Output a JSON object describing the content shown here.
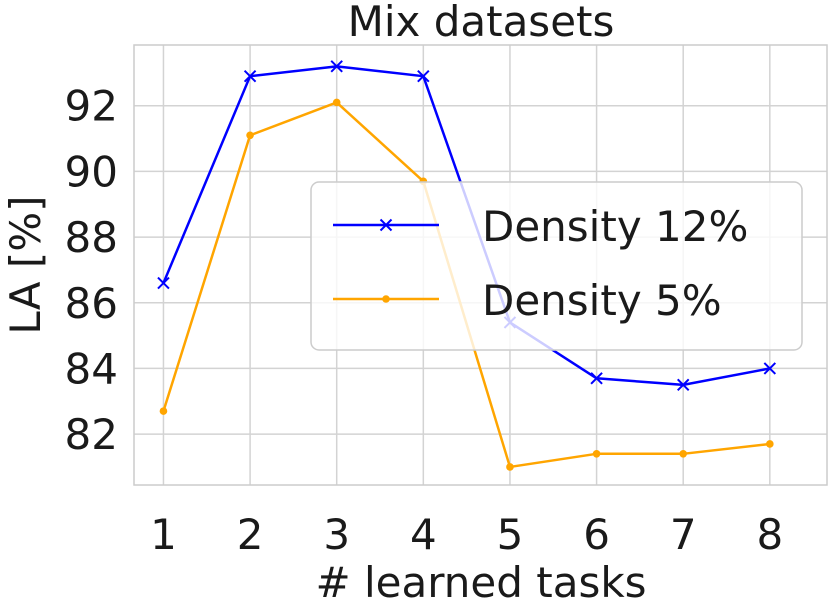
{
  "chart_data": {
    "type": "line",
    "title": "Mix datasets",
    "xlabel": "# learned tasks",
    "ylabel": "LA [%]",
    "x": [
      1,
      2,
      3,
      4,
      5,
      6,
      7,
      8
    ],
    "xticks": [
      "1",
      "2",
      "3",
      "4",
      "5",
      "6",
      "7",
      "8"
    ],
    "yticks": [
      "82",
      "84",
      "86",
      "88",
      "90",
      "92"
    ],
    "xlim": [
      0.66,
      8.66
    ],
    "ylim": [
      80.45,
      93.85
    ],
    "grid": true,
    "legend_position": "center-right",
    "series": [
      {
        "name": "Density 12%",
        "color": "#0000ff",
        "marker": "x",
        "values": [
          86.6,
          92.9,
          93.2,
          92.9,
          85.4,
          83.7,
          83.5,
          84.0
        ]
      },
      {
        "name": "Density 5%",
        "color": "#ffa500",
        "marker": "o",
        "values": [
          82.7,
          91.1,
          92.1,
          89.7,
          81.0,
          81.4,
          81.4,
          81.7
        ]
      }
    ]
  }
}
